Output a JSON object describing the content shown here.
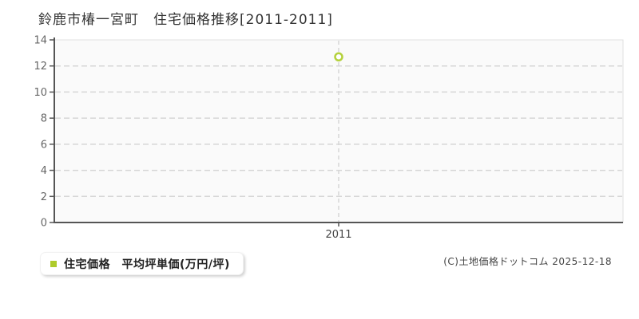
{
  "page": {
    "title": "鈴鹿市椿一宮町　住宅価格推移[2011-2011]",
    "copyright": "(C)土地価格ドットコム 2025-12-18"
  },
  "legend": {
    "label": "住宅価格　平均坪単価(万円/坪)",
    "marker_color": "#aecb2b"
  },
  "chart_data": {
    "type": "scatter",
    "title": "鈴鹿市椿一宮町 住宅価格推移[2011-2011]",
    "categories": [
      "2011"
    ],
    "series": [
      {
        "name": "住宅価格 平均坪単価(万円/坪)",
        "values": [
          12.7
        ],
        "marker": "open-circle",
        "color": "#b4d13c"
      }
    ],
    "xlabel": "",
    "ylabel": "",
    "ylim": [
      0,
      14
    ],
    "ytick_step": 2,
    "grid": "horizontal-dashed",
    "guide": "vertical-dashed-per-category",
    "legend_position": "bottom-left"
  },
  "colors": {
    "axis": "#555555",
    "gridline": "#d6d6d6",
    "plot_border": "#e0e0e0",
    "plot_bg": "#fafafa",
    "ytick_label": "#666666",
    "xtick_label": "#444444"
  }
}
